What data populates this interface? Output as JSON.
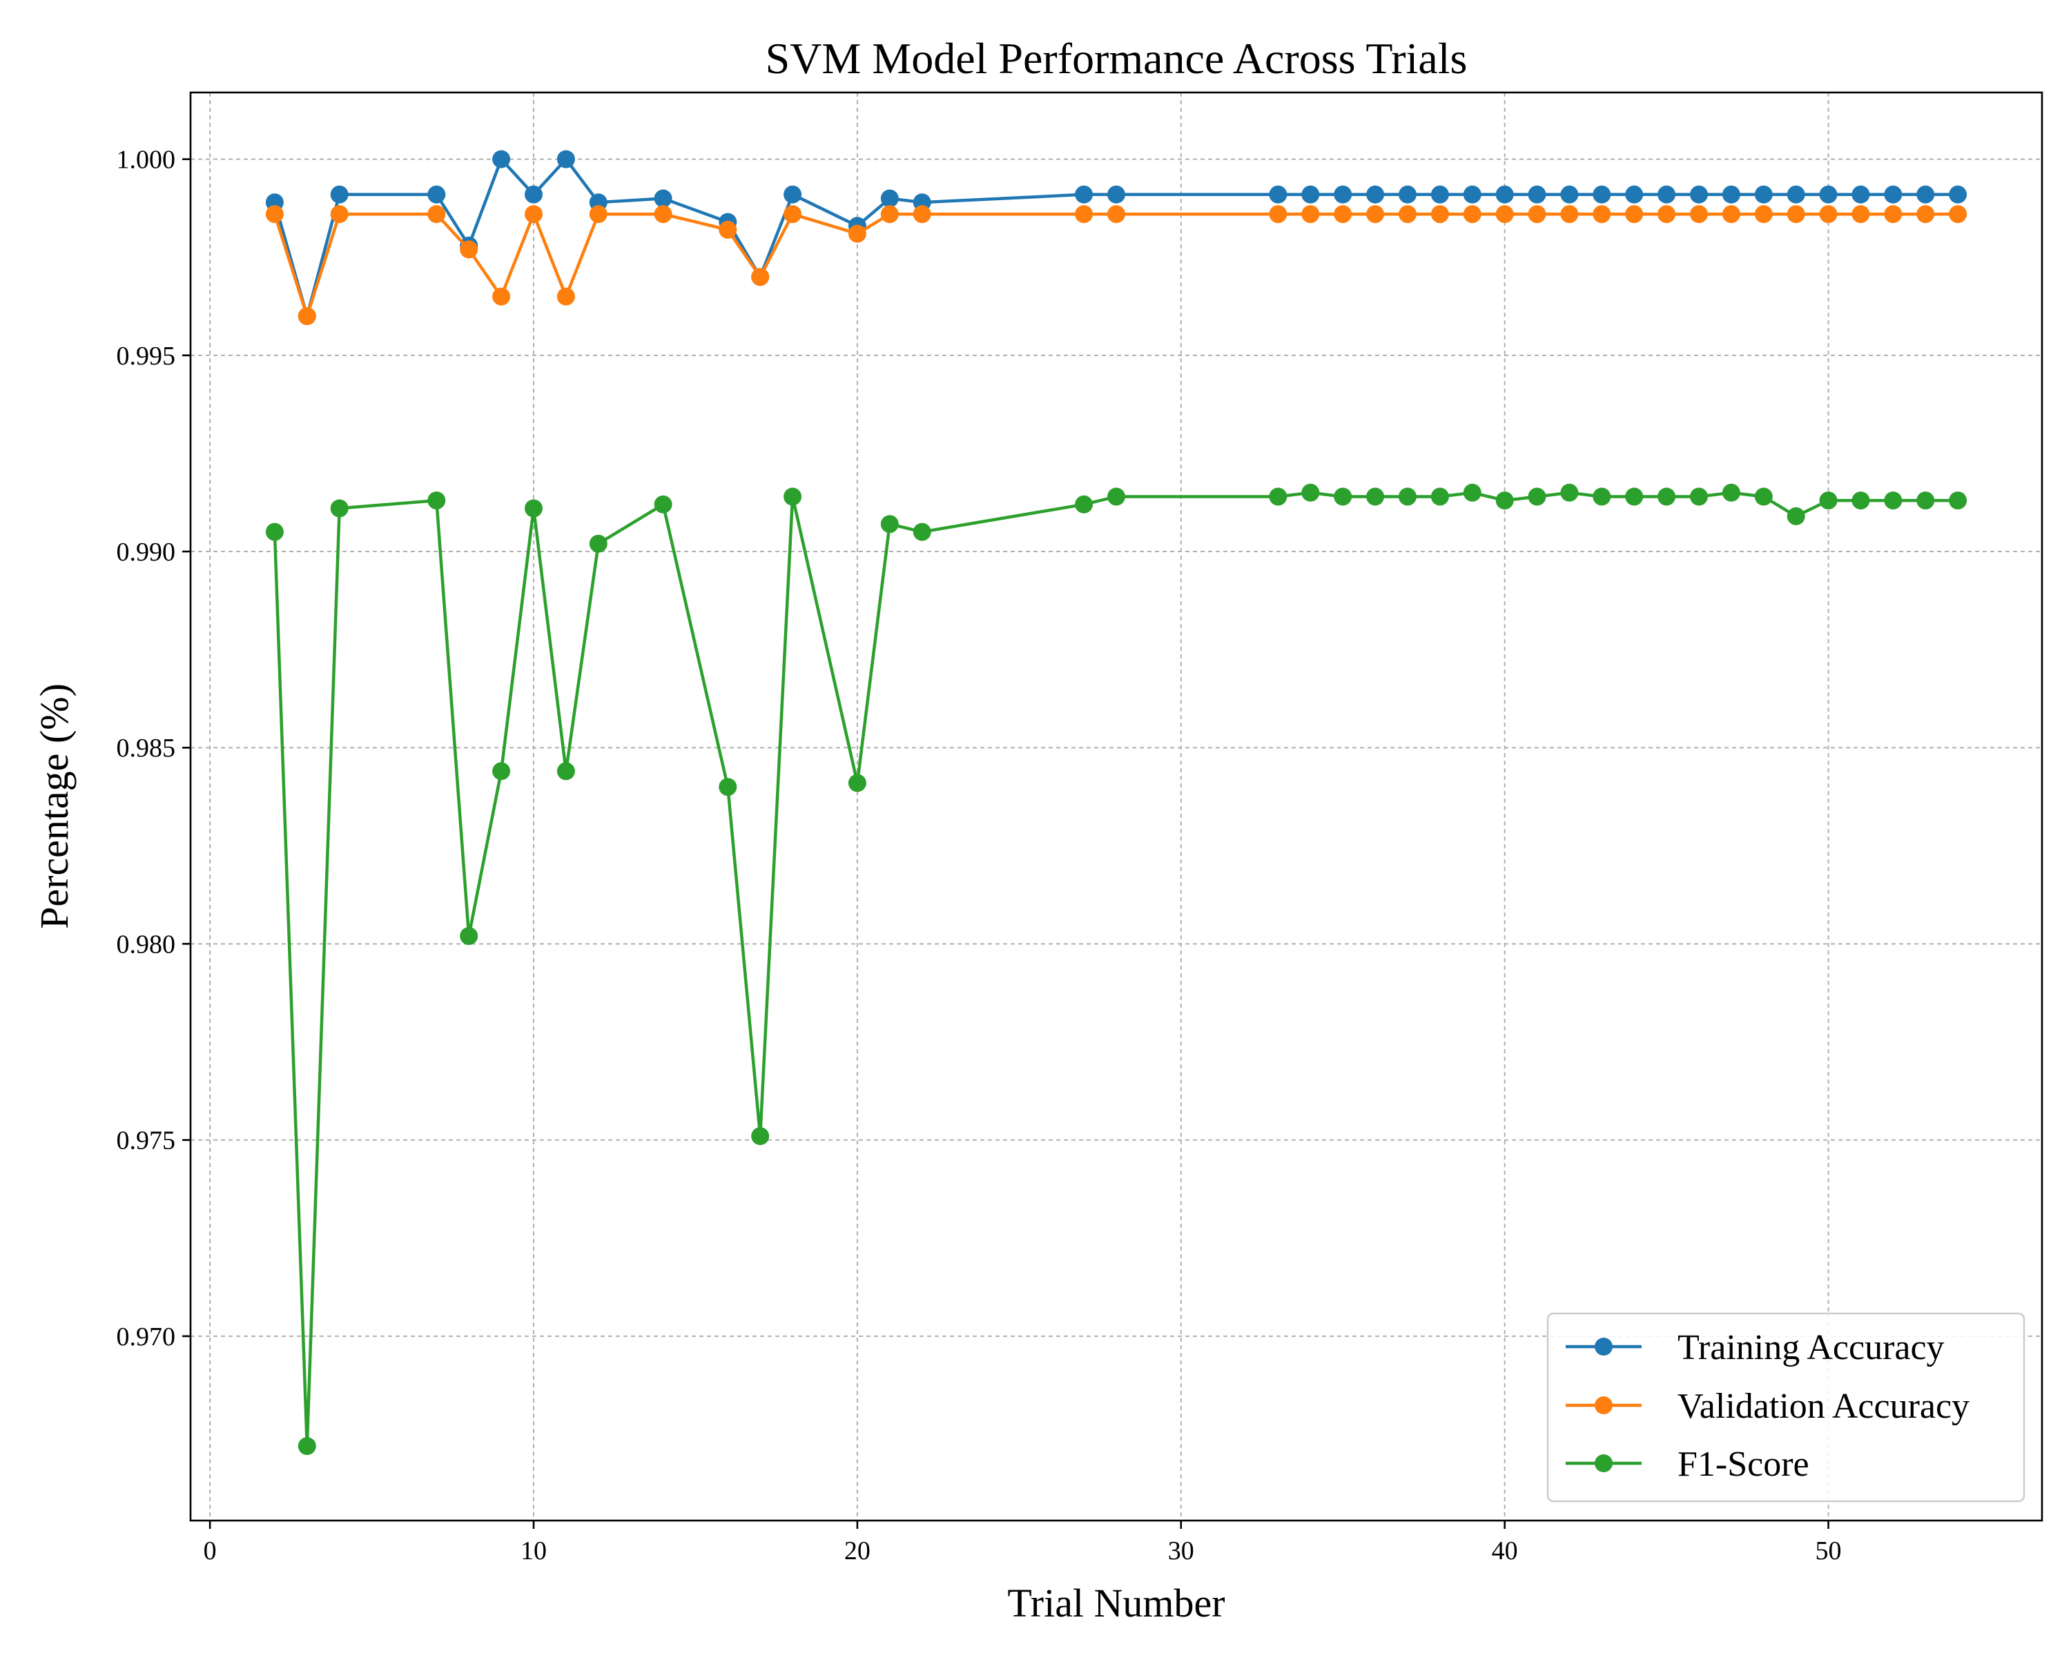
{
  "chart_data": {
    "type": "line",
    "title": "SVM Model Performance Across Trials",
    "xlabel": "Trial Number",
    "ylabel": "Percentage (%)",
    "xlim": [
      -0.6,
      56.6
    ],
    "ylim": [
      0.9653,
      1.0017
    ],
    "xticks": [
      0,
      10,
      20,
      30,
      40,
      50
    ],
    "xtick_labels": [
      "0",
      "10",
      "20",
      "30",
      "40",
      "50"
    ],
    "yticks": [
      0.97,
      0.975,
      0.98,
      0.985,
      0.99,
      0.995,
      1.0
    ],
    "ytick_labels": [
      "0.970",
      "0.975",
      "0.980",
      "0.985",
      "0.990",
      "0.995",
      "1.000"
    ],
    "grid": true,
    "legend_position": "lower-right",
    "x": [
      2,
      3,
      4,
      7,
      8,
      9,
      10,
      11,
      12,
      14,
      16,
      17,
      18,
      20,
      21,
      22,
      27,
      28,
      33,
      34,
      35,
      36,
      37,
      38,
      39,
      40,
      41,
      42,
      43,
      44,
      45,
      46,
      47,
      48,
      49,
      50,
      51,
      52,
      53,
      54
    ],
    "series": [
      {
        "name": "Training Accuracy",
        "color": "#1f77b4",
        "values": [
          0.9989,
          0.996,
          0.9991,
          0.9991,
          0.9978,
          1.0,
          0.9991,
          1.0,
          0.9989,
          0.999,
          0.9984,
          0.997,
          0.9991,
          0.9983,
          0.999,
          0.9989,
          0.9991,
          0.9991,
          0.9991,
          0.9991,
          0.9991,
          0.9991,
          0.9991,
          0.9991,
          0.9991,
          0.9991,
          0.9991,
          0.9991,
          0.9991,
          0.9991,
          0.9991,
          0.9991,
          0.9991,
          0.9991,
          0.9991,
          0.9991,
          0.9991,
          0.9991,
          0.9991,
          0.9991
        ]
      },
      {
        "name": "Validation Accuracy",
        "color": "#ff7f0e",
        "values": [
          0.9986,
          0.996,
          0.9986,
          0.9986,
          0.9977,
          0.9965,
          0.9986,
          0.9965,
          0.9986,
          0.9986,
          0.9982,
          0.997,
          0.9986,
          0.9981,
          0.9986,
          0.9986,
          0.9986,
          0.9986,
          0.9986,
          0.9986,
          0.9986,
          0.9986,
          0.9986,
          0.9986,
          0.9986,
          0.9986,
          0.9986,
          0.9986,
          0.9986,
          0.9986,
          0.9986,
          0.9986,
          0.9986,
          0.9986,
          0.9986,
          0.9986,
          0.9986,
          0.9986,
          0.9986,
          0.9986
        ]
      },
      {
        "name": "F1-Score",
        "color": "#2ca02c",
        "values": [
          0.9905,
          0.9672,
          0.9911,
          0.9913,
          0.9802,
          0.9844,
          0.9911,
          0.9844,
          0.9902,
          0.9912,
          0.984,
          0.9751,
          0.9914,
          0.9841,
          0.9907,
          0.9905,
          0.9912,
          0.9914,
          0.9914,
          0.9915,
          0.9914,
          0.9914,
          0.9914,
          0.9914,
          0.9915,
          0.9913,
          0.9914,
          0.9915,
          0.9914,
          0.9914,
          0.9914,
          0.9914,
          0.9915,
          0.9914,
          0.9909,
          0.9913,
          0.9913,
          0.9913,
          0.9913,
          0.9913
        ]
      }
    ]
  }
}
